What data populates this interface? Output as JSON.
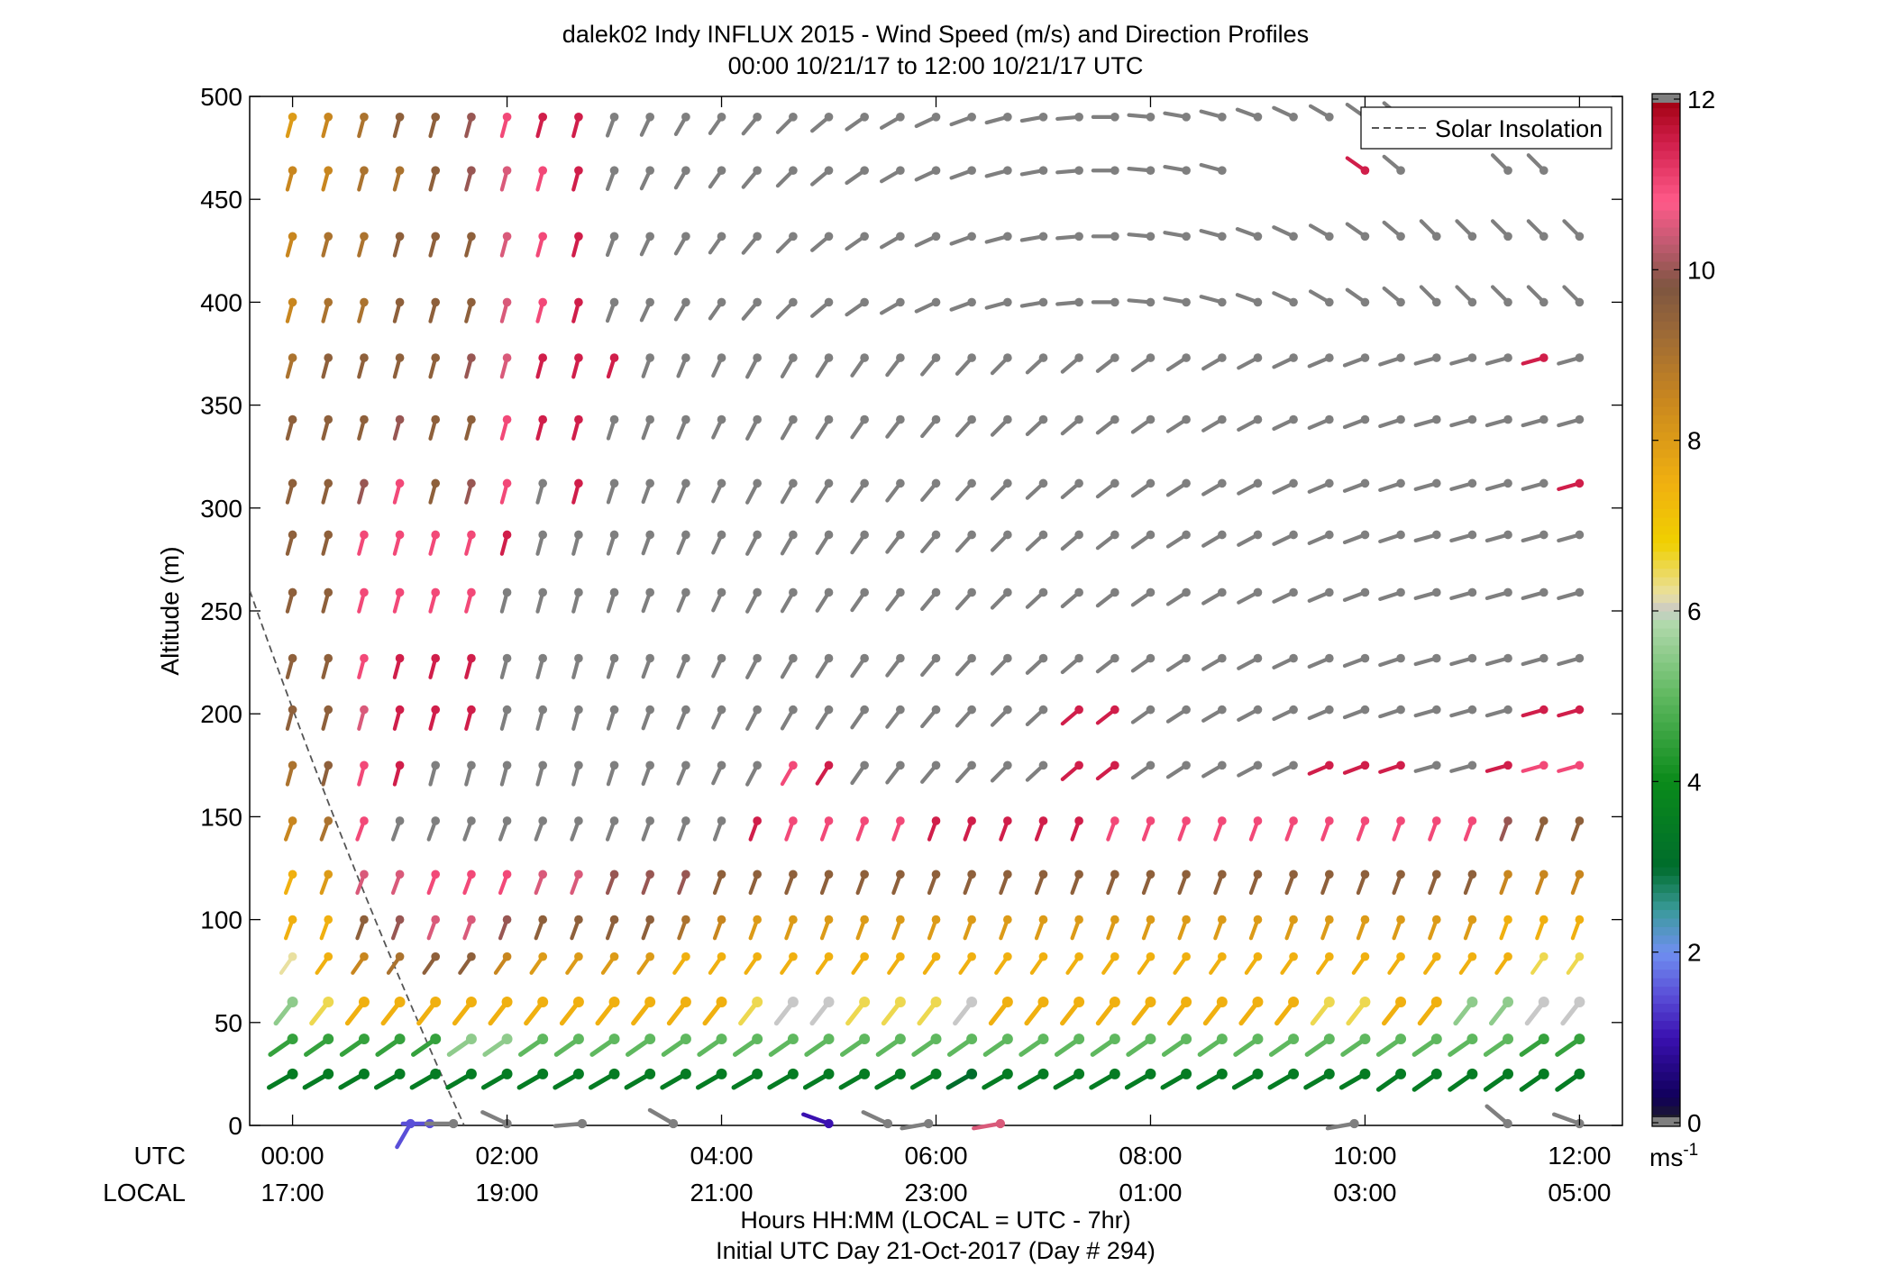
{
  "title_line1": "dalek02 Indy INFLUX 2015 - Wind Speed (m/s) and Direction Profiles",
  "title_line2": "00:00 10/21/17 to 12:00 10/21/17  UTC",
  "xlabel_line1": "Hours HH:MM  (LOCAL = UTC - 7hr)",
  "xlabel_line2": "Initial UTC Day 21-Oct-2017 (Day # 294)",
  "utc_row_label": "UTC",
  "local_row_label": "LOCAL",
  "colorbar_unit": "ms",
  "colorbar_unit_exp": "-1",
  "legend_label": "Solar Insolation",
  "chart_data": {
    "type": "wind-barb profile",
    "xlim_hours": [
      -0.4,
      12.4
    ],
    "ylim": [
      0,
      500
    ],
    "ylabel": "Altitude (m)",
    "y_ticks": [
      0,
      50,
      100,
      150,
      200,
      250,
      300,
      350,
      400,
      450,
      500
    ],
    "x_ticks_hours": [
      0,
      2,
      4,
      6,
      8,
      10,
      12
    ],
    "x_tick_labels_utc": [
      "00:00",
      "02:00",
      "04:00",
      "06:00",
      "08:00",
      "10:00",
      "12:00"
    ],
    "x_tick_labels_local": [
      "17:00",
      "19:00",
      "21:00",
      "23:00",
      "01:00",
      "03:00",
      "05:00"
    ],
    "colorbar_ticks": [
      0,
      2,
      4,
      6,
      8,
      10,
      12
    ],
    "colorbar_range": [
      0,
      12
    ],
    "grid": false,
    "legend_position": "top-right",
    "solar_insolation_line": [
      [
        -0.4,
        260
      ],
      [
        1.6,
        0
      ]
    ],
    "time_step_hours": 0.333,
    "profile_times_hours": [
      0,
      0.333,
      0.667,
      1.0,
      1.333,
      1.667,
      2.0,
      2.333,
      2.667,
      3.0,
      3.333,
      3.667,
      4.0,
      4.333,
      4.667,
      5.0,
      5.333,
      5.667,
      6.0,
      6.333,
      6.667,
      7.0,
      7.333,
      7.667,
      8.0,
      8.333,
      8.667,
      9.0,
      9.333,
      9.667,
      10.0,
      10.333,
      10.667,
      11.0,
      11.333,
      11.667,
      12.0
    ],
    "altitudes_m": [
      25,
      42,
      60,
      82,
      100,
      122,
      148,
      175,
      202,
      227,
      259,
      287,
      312,
      343,
      373,
      400,
      432,
      464,
      490
    ],
    "speed_profiles_ms": {
      "25": [
        3.5,
        3.5,
        3.5,
        3.5,
        3.5,
        3.5,
        3.5,
        3.5,
        3.5,
        3.5,
        3.5,
        3.5,
        3.5,
        3.5,
        3.5,
        3.5,
        3.5,
        3.5,
        3.5,
        3.0,
        3.5,
        3.5,
        3.5,
        3.5,
        3.5,
        3.5,
        3.5,
        3.5,
        3.5,
        3.5,
        3.5,
        3.5,
        3.5,
        3.5,
        3.5,
        3.5,
        3.5
      ],
      "42": [
        4.5,
        4.5,
        4.5,
        4.5,
        4.5,
        5.5,
        5.5,
        5.0,
        5.0,
        5.0,
        5.0,
        5.0,
        5.0,
        5.0,
        5.0,
        5.0,
        5.0,
        5.0,
        5.0,
        5.0,
        5.0,
        5.0,
        5.0,
        5.0,
        5.0,
        5.0,
        5.0,
        5.0,
        5.0,
        5.0,
        5.0,
        5.0,
        5.0,
        5.0,
        5.0,
        4.5,
        4.5
      ],
      "60": [
        5.5,
        6.5,
        7.5,
        7.5,
        7.5,
        7.5,
        7.5,
        7.5,
        7.5,
        7.5,
        7.5,
        7.5,
        7.5,
        6.5,
        6.0,
        6.0,
        6.5,
        6.5,
        6.5,
        6.0,
        7.5,
        7.5,
        7.5,
        7.5,
        7.5,
        7.5,
        7.5,
        7.5,
        7.5,
        6.5,
        6.5,
        7.5,
        7.5,
        5.5,
        5.5,
        6.0,
        6.0
      ],
      "82": [
        6.2,
        7.5,
        8.5,
        9.0,
        9.5,
        9.5,
        8.5,
        8.0,
        8.0,
        8.0,
        8.0,
        7.5,
        7.5,
        7.5,
        7.5,
        7.5,
        7.5,
        7.5,
        7.5,
        7.5,
        7.5,
        7.5,
        7.5,
        7.5,
        7.5,
        7.5,
        7.5,
        7.5,
        7.5,
        7.5,
        7.5,
        7.5,
        7.5,
        7.5,
        7.5,
        6.5,
        6.5
      ],
      "100": [
        7.5,
        7.5,
        9.5,
        10.0,
        10.5,
        10.5,
        10.0,
        9.5,
        9.5,
        9.5,
        9.5,
        9.0,
        8.5,
        8.0,
        8.0,
        8.0,
        8.0,
        8.0,
        8.0,
        8.0,
        8.0,
        8.0,
        8.0,
        8.0,
        8.0,
        8.0,
        8.0,
        8.0,
        8.0,
        8.0,
        8.0,
        8.0,
        8.0,
        8.0,
        7.5,
        7.5,
        7.5
      ],
      "122": [
        7.5,
        8.0,
        10.5,
        10.5,
        11.0,
        11.0,
        11.0,
        10.5,
        10.5,
        10.0,
        10.0,
        10.0,
        9.5,
        9.5,
        9.5,
        9.5,
        9.5,
        9.5,
        9.5,
        9.5,
        9.5,
        9.5,
        9.5,
        9.5,
        9.5,
        9.5,
        9.5,
        9.5,
        9.5,
        9.5,
        9.5,
        9.5,
        9.5,
        9.5,
        8.5,
        8.5,
        8.5
      ],
      "148": [
        8.5,
        9.0,
        11.0,
        12.5,
        12.5,
        12.5,
        12.5,
        12.5,
        12.5,
        12.5,
        12.5,
        12.5,
        12.5,
        11.5,
        11.0,
        11.0,
        11.0,
        11.0,
        11.5,
        11.5,
        11.5,
        11.5,
        11.5,
        11.0,
        11.0,
        11.0,
        11.0,
        11.0,
        11.0,
        11.0,
        11.0,
        11.0,
        11.0,
        11.0,
        10.0,
        9.5,
        9.5
      ],
      "175": [
        9.0,
        9.5,
        11.0,
        11.5,
        12.5,
        12.5,
        12.5,
        12.5,
        12.5,
        12.5,
        12.5,
        12.5,
        12.5,
        12.5,
        11.0,
        11.5,
        12.5,
        12.5,
        12.5,
        12.5,
        12.5,
        12.5,
        11.5,
        11.5,
        12.5,
        12.5,
        12.5,
        12.5,
        12.5,
        11.5,
        11.5,
        11.5,
        12.5,
        12.5,
        11.5,
        11.0,
        11.0
      ],
      "202": [
        9.5,
        9.5,
        10.5,
        11.5,
        11.5,
        11.5,
        12.5,
        12.5,
        12.5,
        12.5,
        12.5,
        12.5,
        12.5,
        12.5,
        12.5,
        12.5,
        12.5,
        12.5,
        12.5,
        12.5,
        12.5,
        12.5,
        11.5,
        11.5,
        12.5,
        12.5,
        12.5,
        12.5,
        12.5,
        12.5,
        12.5,
        12.5,
        12.5,
        12.5,
        12.5,
        11.5,
        11.5
      ],
      "227": [
        9.5,
        9.5,
        11.0,
        11.5,
        11.5,
        11.5,
        12.5,
        12.5,
        12.5,
        12.5,
        12.5,
        12.5,
        12.5,
        12.5,
        12.5,
        12.5,
        12.5,
        12.5,
        12.5,
        12.5,
        12.5,
        12.5,
        12.5,
        12.5,
        12.5,
        12.5,
        12.5,
        12.5,
        12.5,
        12.5,
        12.5,
        12.5,
        12.5,
        12.5,
        12.5,
        12.5,
        12.5
      ],
      "259": [
        9.5,
        9.5,
        11.0,
        11.0,
        11.0,
        11.0,
        12.5,
        12.5,
        12.5,
        12.5,
        12.5,
        12.5,
        12.5,
        12.5,
        12.5,
        12.5,
        12.5,
        12.5,
        12.5,
        12.5,
        12.5,
        12.5,
        12.5,
        12.5,
        12.5,
        12.5,
        12.5,
        12.5,
        12.5,
        12.5,
        12.5,
        12.5,
        12.5,
        12.5,
        12.5,
        12.5,
        12.5
      ],
      "287": [
        9.5,
        9.5,
        11.0,
        11.0,
        11.0,
        11.0,
        11.5,
        12.5,
        12.5,
        12.5,
        12.5,
        12.5,
        12.5,
        12.5,
        12.5,
        12.5,
        12.5,
        12.5,
        12.5,
        12.5,
        12.5,
        12.5,
        12.5,
        12.5,
        12.5,
        12.5,
        12.5,
        12.5,
        12.5,
        12.5,
        12.5,
        12.5,
        12.5,
        12.5,
        12.5,
        12.5,
        12.5
      ],
      "312": [
        9.5,
        9.5,
        10.0,
        11.0,
        9.5,
        10.0,
        11.0,
        12.5,
        11.5,
        12.5,
        12.5,
        12.5,
        12.5,
        12.5,
        12.5,
        12.5,
        12.5,
        12.5,
        12.5,
        12.5,
        12.5,
        12.5,
        12.5,
        12.5,
        12.5,
        12.5,
        12.5,
        12.5,
        12.5,
        12.5,
        12.5,
        12.5,
        12.5,
        12.5,
        12.5,
        12.5,
        11.5
      ],
      "343": [
        9.5,
        9.5,
        9.5,
        10.0,
        9.5,
        9.5,
        11.0,
        11.5,
        11.5,
        12.5,
        12.5,
        12.5,
        12.5,
        12.5,
        12.5,
        12.5,
        12.5,
        12.5,
        12.5,
        12.5,
        12.5,
        12.5,
        12.5,
        12.5,
        12.5,
        12.5,
        12.5,
        12.5,
        12.5,
        12.5,
        12.5,
        12.5,
        12.5,
        12.5,
        12.5,
        12.5,
        12.5
      ],
      "373": [
        9.0,
        9.5,
        9.5,
        9.5,
        9.5,
        10.0,
        10.5,
        11.5,
        11.5,
        11.5,
        12.5,
        12.5,
        12.5,
        12.5,
        12.5,
        12.5,
        12.5,
        12.5,
        12.5,
        12.5,
        12.5,
        12.5,
        12.5,
        12.5,
        12.5,
        12.5,
        12.5,
        12.5,
        12.5,
        12.5,
        12.5,
        12.5,
        12.5,
        12.5,
        12.5,
        11.5,
        12.5
      ],
      "400": [
        8.5,
        9.0,
        9.0,
        9.5,
        9.5,
        9.5,
        10.5,
        11.0,
        11.5,
        12.5,
        12.5,
        12.5,
        12.5,
        12.5,
        12.5,
        12.5,
        12.5,
        12.5,
        12.5,
        12.5,
        12.5,
        12.5,
        12.5,
        12.5,
        12.5,
        12.5,
        12.5,
        12.5,
        12.5,
        12.5,
        12.5,
        12.5,
        12.5,
        12.5,
        12.5,
        12.5,
        12.5
      ],
      "432": [
        8.5,
        9.0,
        9.0,
        9.5,
        9.5,
        9.5,
        10.5,
        11.0,
        11.5,
        12.5,
        12.5,
        12.5,
        12.5,
        12.5,
        12.5,
        12.5,
        12.5,
        12.5,
        12.5,
        12.5,
        12.5,
        12.5,
        12.5,
        12.5,
        12.5,
        12.5,
        12.5,
        12.5,
        12.5,
        12.5,
        12.5,
        12.5,
        12.5,
        12.5,
        12.5,
        12.5,
        12.5
      ],
      "464": [
        8.5,
        8.5,
        9.0,
        9.0,
        9.5,
        10.0,
        10.5,
        11.0,
        11.5,
        12.5,
        12.5,
        12.5,
        12.5,
        12.5,
        12.5,
        12.5,
        12.5,
        12.5,
        12.5,
        12.5,
        12.5,
        12.5,
        12.5,
        12.5,
        12.5,
        12.5,
        12.5,
        null,
        null,
        null,
        11.5,
        12.5,
        null,
        null,
        12.5,
        12.5,
        null
      ],
      "490": [
        8.0,
        8.5,
        9.0,
        9.5,
        9.5,
        10.0,
        11.0,
        11.5,
        11.5,
        12.5,
        12.5,
        12.5,
        12.5,
        12.5,
        12.5,
        12.5,
        12.5,
        12.5,
        12.5,
        12.5,
        12.5,
        12.5,
        12.5,
        12.5,
        12.5,
        12.5,
        12.5,
        12.5,
        12.5,
        12.5,
        12.5,
        12.5,
        null,
        null,
        null,
        null,
        null
      ]
    },
    "direction_profiles_deg_tail_angle": {
      "note_units": "screen angle of tail from head, degrees (0 = right, 90 = down)",
      "low_25": 150,
      "low_42": 145,
      "low_60": 128,
      "low_82": 125,
      "mid": 110,
      "upper_early": 100,
      "upper_late": 225
    },
    "surface_points": [
      {
        "t": 1.1,
        "alt": 0,
        "speed": 1.5,
        "tail": 120
      },
      {
        "t": 1.28,
        "alt": 0,
        "speed": 1.5,
        "tail": 180
      },
      {
        "t": 1.5,
        "alt": 0,
        "speed": 12.5,
        "tail": 180
      },
      {
        "t": 2.0,
        "alt": 0,
        "speed": 12.5,
        "tail": 205
      },
      {
        "t": 2.7,
        "alt": 0,
        "speed": 12.5,
        "tail": 175
      },
      {
        "t": 3.55,
        "alt": 0,
        "speed": 12.5,
        "tail": 210
      },
      {
        "t": 5.0,
        "alt": 0,
        "speed": 1.0,
        "tail": 200
      },
      {
        "t": 5.55,
        "alt": 0,
        "speed": 12.5,
        "tail": 205
      },
      {
        "t": 5.93,
        "alt": 0,
        "speed": 12.5,
        "tail": 170
      },
      {
        "t": 6.6,
        "alt": 0,
        "speed": 10.5,
        "tail": 170
      },
      {
        "t": 9.9,
        "alt": 0,
        "speed": 12.5,
        "tail": 170
      },
      {
        "t": 11.33,
        "alt": 0,
        "speed": 12.5,
        "tail": 220
      },
      {
        "t": 12.0,
        "alt": 0,
        "speed": 12.5,
        "tail": 200
      }
    ]
  }
}
